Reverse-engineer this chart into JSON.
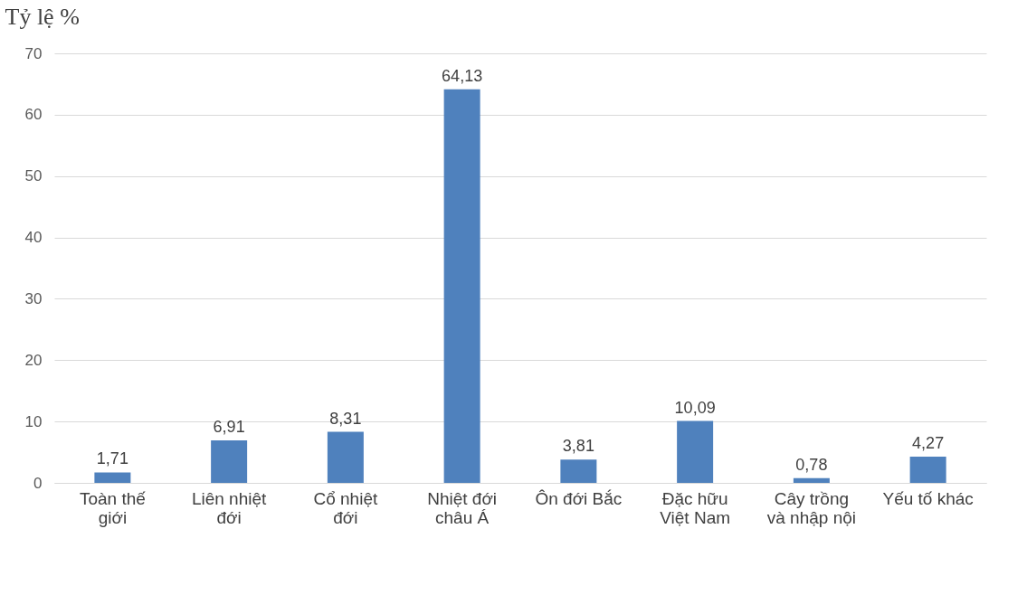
{
  "chart_data": {
    "type": "bar",
    "ylabel": "Tỷ lệ %",
    "categories": [
      "Toàn thế giới",
      "Liên nhiệt đới",
      "Cổ nhiệt đới",
      "Nhiệt đới châu Á",
      "Ôn đới Bắc",
      "Đặc hữu Việt Nam",
      "Cây trồng và nhập nội",
      "Yếu tố khác"
    ],
    "values": [
      1.71,
      6.91,
      8.31,
      64.13,
      3.81,
      10.09,
      0.78,
      4.27
    ],
    "value_labels": [
      "1,71",
      "6,91",
      "8,31",
      "64,13",
      "3,81",
      "10,09",
      "0,78",
      "4,27"
    ],
    "color": "#4f81bd",
    "ylim": [
      0,
      70
    ],
    "yticks": [
      0,
      10,
      20,
      30,
      40,
      50,
      60,
      70
    ],
    "grid": "y"
  }
}
